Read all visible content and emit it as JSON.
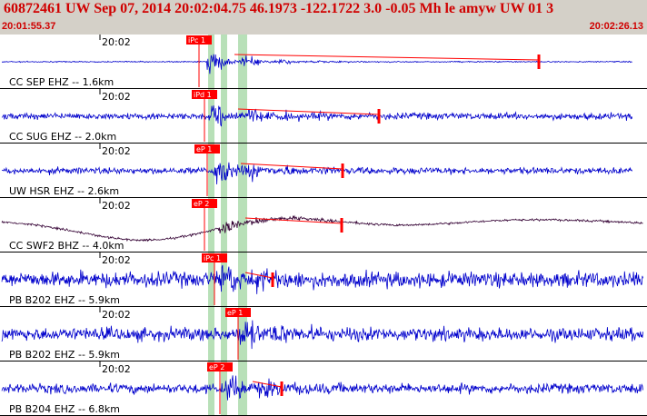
{
  "header": {
    "title": "60872461 UW Sep 07, 2014 20:02:04.75   46.1973 -122.1722  3.0 -0.05 Mh le amyw UW 01   3",
    "start_time": "20:01:55.37",
    "end_time": "20:02:26.13"
  },
  "colors": {
    "header_bg": "#d4d0c8",
    "title_text": "#d00000",
    "trace": "#0000cc",
    "trace_alt": "#330033",
    "pick": "#ff0000",
    "pick_window": "#b8e0b8"
  },
  "panels": [
    {
      "station": "CC SEP EHZ -- 1.6km",
      "tick": "20:02",
      "pick": "iPc 1"
    },
    {
      "station": "CC SUG EHZ -- 2.0km",
      "tick": "20:02",
      "pick": "iPd 1"
    },
    {
      "station": "UW HSR EHZ -- 2.6km",
      "tick": "20:02",
      "pick": "eP 1"
    },
    {
      "station": "CC SWF2 BHZ -- 4.0km",
      "tick": "20:02",
      "pick": "eP 2"
    },
    {
      "station": "PB B202 EHZ -- 5.9km",
      "tick": "20:02",
      "pick": "iPc 1"
    },
    {
      "station": "PB B202 EHZ -- 5.9km",
      "tick": "20:02",
      "pick": "eP 1"
    },
    {
      "station": "PB B204 EHZ -- 6.8km",
      "tick": "20:02",
      "pick": "eP 2"
    }
  ]
}
